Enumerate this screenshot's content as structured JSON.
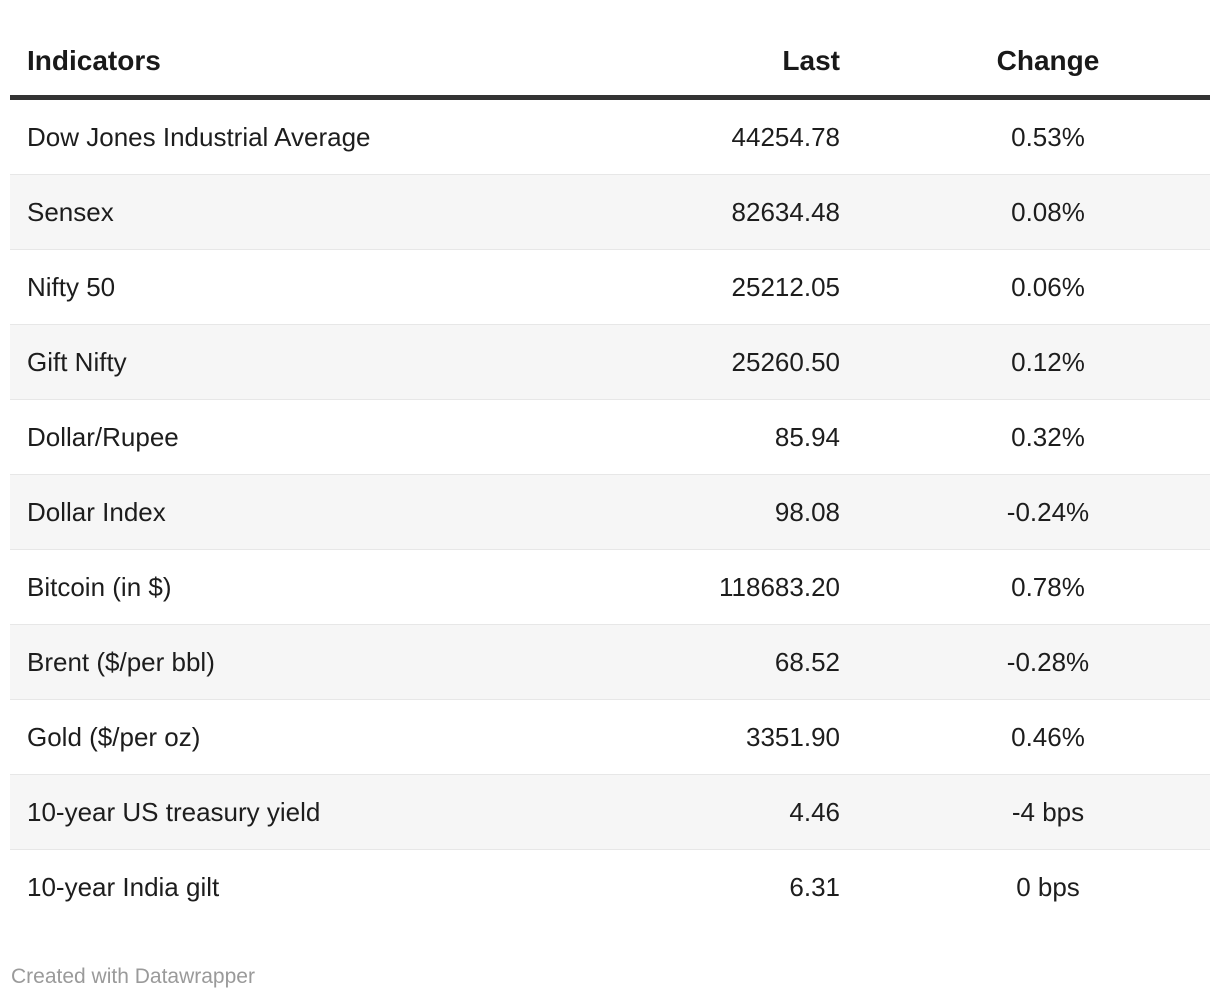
{
  "chart_data": {
    "type": "table",
    "columns": [
      "Indicators",
      "Last",
      "Change"
    ],
    "rows": [
      [
        "Dow Jones Industrial Average",
        "44254.78",
        "0.53%"
      ],
      [
        "Sensex",
        "82634.48",
        "0.08%"
      ],
      [
        "Nifty 50",
        "25212.05",
        "0.06%"
      ],
      [
        "Gift Nifty",
        "25260.50",
        "0.12%"
      ],
      [
        "Dollar/Rupee",
        "85.94",
        "0.32%"
      ],
      [
        "Dollar Index",
        "98.08",
        "-0.24%"
      ],
      [
        "Bitcoin (in $)",
        "118683.20",
        "0.78%"
      ],
      [
        "Brent ($/per bbl)",
        "68.52",
        "-0.28%"
      ],
      [
        "Gold ($/per oz)",
        "3351.90",
        "0.46%"
      ],
      [
        "10-year US treasury yield",
        "4.46",
        "-4 bps"
      ],
      [
        "10-year India gilt",
        "6.31",
        "0 bps"
      ]
    ],
    "layout_hints": {
      "zebra_striping": true,
      "column_alignment": [
        "left",
        "right",
        "center"
      ],
      "header_rule": true
    }
  },
  "footer": {
    "attribution": "Created with Datawrapper"
  },
  "colors": {
    "background": "#ffffff",
    "stripe_row": "#f6f6f6",
    "header_rule": "#333333",
    "row_separator": "#e7e7e7",
    "body_text": "#1d1d1d",
    "header_text": "#191919",
    "attribution_text": "#9a9a9a"
  }
}
